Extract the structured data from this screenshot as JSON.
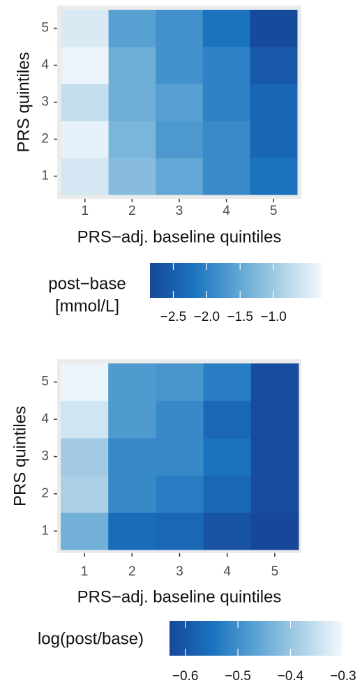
{
  "chart_data": [
    {
      "type": "heatmap",
      "x_title": "PRS−adj. baseline quintiles",
      "y_title": "PRS quintiles",
      "x_categories": [
        "1",
        "2",
        "3",
        "4",
        "5"
      ],
      "y_categories": [
        "1",
        "2",
        "3",
        "4",
        "5"
      ],
      "z": [
        [
          -0.55,
          -1.2,
          -1.5,
          -1.9,
          -2.2
        ],
        [
          -0.4,
          -1.3,
          -1.7,
          -1.9,
          -2.4
        ],
        [
          -0.7,
          -1.4,
          -1.6,
          -2.0,
          -2.4
        ],
        [
          -0.35,
          -1.4,
          -1.8,
          -2.0,
          -2.6
        ],
        [
          -0.5,
          -1.6,
          -1.8,
          -2.2,
          -2.8
        ]
      ],
      "colors": [
        "#16479a",
        "#1b73bf",
        "#5ba3d3",
        "#a9cfe5",
        "#f5f9fe"
      ],
      "legend_title": [
        "post−base",
        "[mmol/L]"
      ],
      "zlim": [
        -2.85,
        -0.27
      ],
      "zticks": [
        {
          "value": -2.5,
          "label": "−2.5"
        },
        {
          "value": -2.0,
          "label": "−2.0"
        },
        {
          "value": -1.5,
          "label": "−1.5"
        },
        {
          "value": -1.0,
          "label": "−1.0"
        }
      ]
    },
    {
      "type": "heatmap",
      "x_title": "PRS−adj. baseline quintiles",
      "y_title": "PRS quintiles",
      "x_categories": [
        "1",
        "2",
        "3",
        "4",
        "5"
      ],
      "y_categories": [
        "1",
        "2",
        "3",
        "4",
        "5"
      ],
      "z": [
        [
          -0.44,
          -0.56,
          -0.57,
          -0.61,
          -0.63
        ],
        [
          -0.38,
          -0.51,
          -0.53,
          -0.57,
          -0.62
        ],
        [
          -0.39,
          -0.51,
          -0.51,
          -0.55,
          -0.62
        ],
        [
          -0.34,
          -0.48,
          -0.51,
          -0.57,
          -0.62
        ],
        [
          -0.31,
          -0.48,
          -0.49,
          -0.53,
          -0.62
        ]
      ],
      "colors": [
        "#16479a",
        "#1b73bf",
        "#5ba3d3",
        "#a9cfe5",
        "#f5f9fe"
      ],
      "legend_title": [
        "log(post/base)"
      ],
      "zlim": [
        -0.63,
        -0.3
      ],
      "zticks": [
        {
          "value": -0.6,
          "label": "−0.6"
        },
        {
          "value": -0.5,
          "label": "−0.5"
        },
        {
          "value": -0.4,
          "label": "−0.4"
        },
        {
          "value": -0.3,
          "label": "−0.3"
        }
      ]
    }
  ]
}
